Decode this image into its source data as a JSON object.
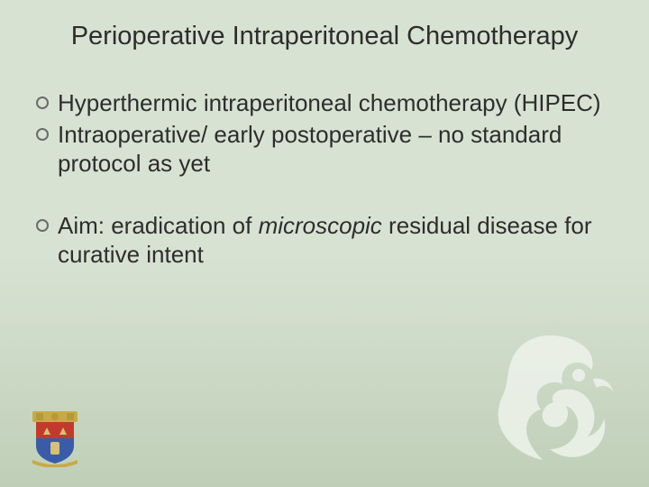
{
  "colors": {
    "background": "#d8e2d3",
    "gradient_bottom": "#bccdb4",
    "text": "#2d2d2d",
    "bullet_ring": "#6b6b6b",
    "emblem_fill": "#eef3eb",
    "crest_banner": "#c8a94a",
    "crest_shield_top": "#c23a2e",
    "crest_shield_bottom": "#3a5ca8",
    "crest_detail": "#d6c07a"
  },
  "title": "Perioperative Intraperitoneal Chemotherapy",
  "title_fontsize": 29,
  "body_fontsize": 26,
  "bullets_group1": [
    {
      "html": "Hyperthermic intraperitoneal chemotherapy (HIPEC)"
    },
    {
      "html": "Intraoperative/ early postoperative – no standard protocol as yet"
    }
  ],
  "bullets_group2": [
    {
      "html": "Aim: eradication of <em>microscopic</em> residual disease for curative intent"
    }
  ]
}
